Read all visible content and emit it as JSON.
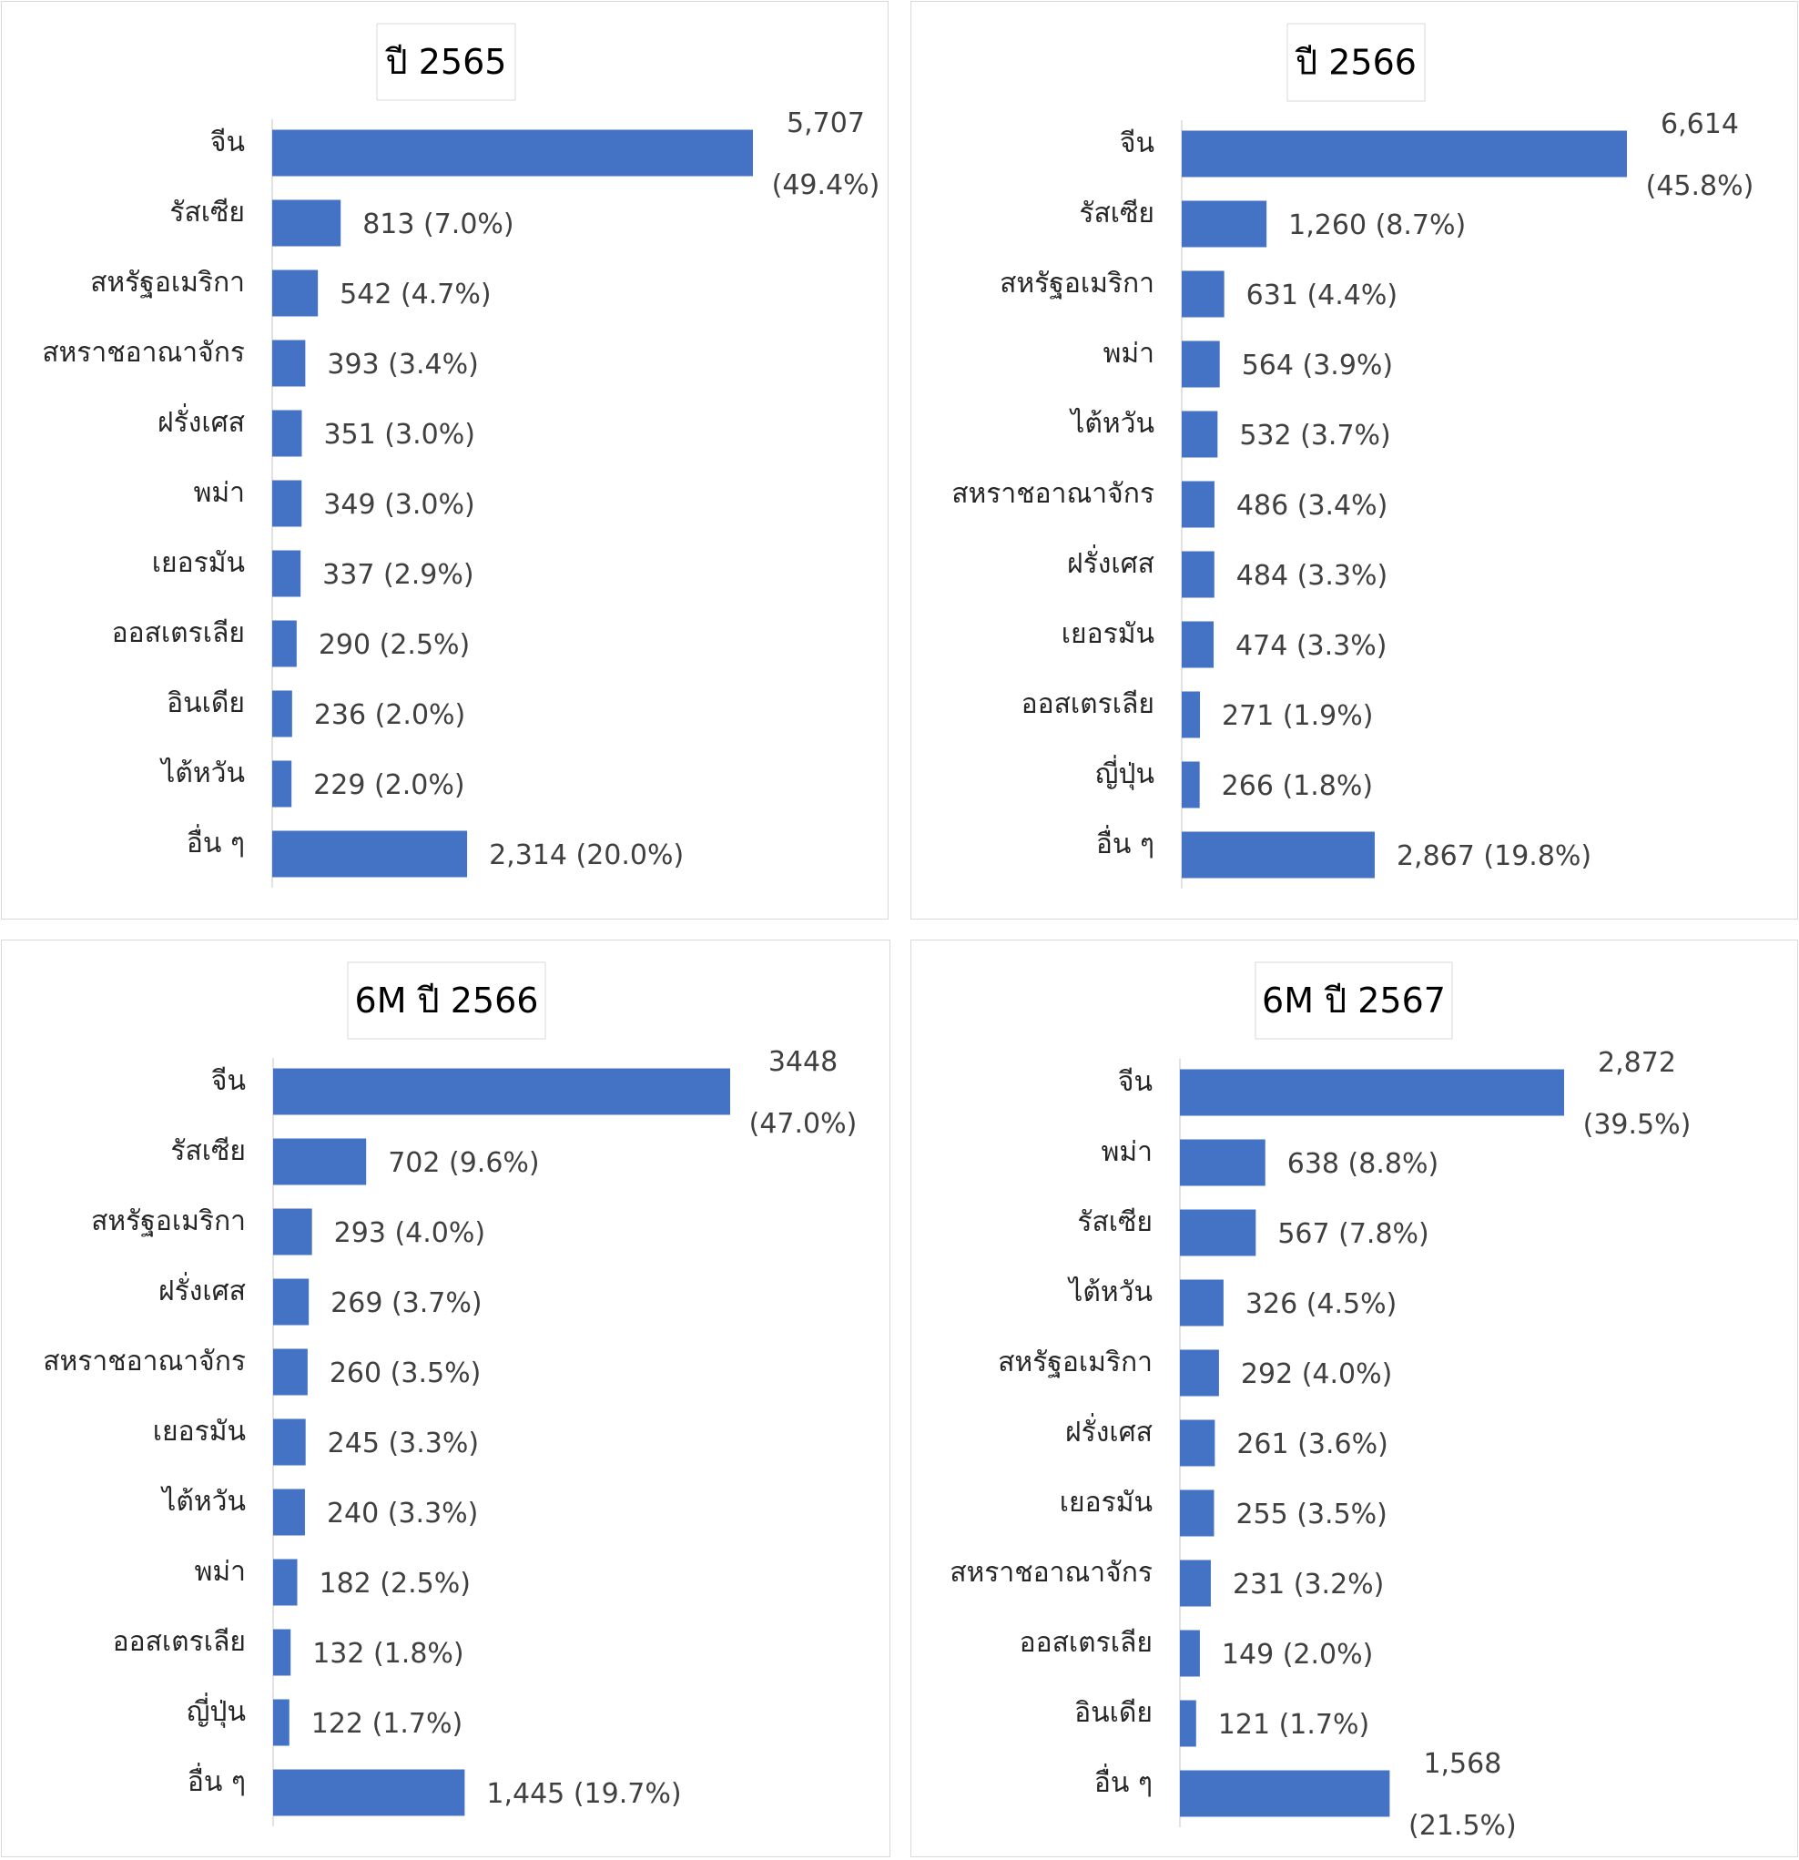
{
  "chart_data": [
    {
      "type": "bar",
      "orientation": "horizontal",
      "title": "ปี 2565",
      "categories": [
        "จีน",
        "รัสเซีย",
        "สหรัฐอเมริกา",
        "สหราชอาณาจักร",
        "ฝรั่งเศส",
        "พม่า",
        "เยอรมัน",
        "ออสเตรเลีย",
        "อินเดีย",
        "ไต้หวัน",
        "อื่น ๆ"
      ],
      "values": [
        5707,
        813,
        542,
        393,
        351,
        349,
        337,
        290,
        236,
        229,
        2314
      ],
      "value_labels": [
        "5,707",
        "813",
        "542",
        "393",
        "351",
        "349",
        "337",
        "290",
        "236",
        "229",
        "2,314"
      ],
      "percent_labels": [
        "(49.4%)",
        "(7.0%)",
        "(4.7%)",
        "(3.4%)",
        "(3.0%)",
        "(3.0%)",
        "(2.9%)",
        "(2.5%)",
        "(2.0%)",
        "(2.0%)",
        "(20.0%)"
      ],
      "bar_color": "#4472c4",
      "grid": false,
      "legend": false
    },
    {
      "type": "bar",
      "orientation": "horizontal",
      "title": "ปี 2566",
      "categories": [
        "จีน",
        "รัสเซีย",
        "สหรัฐอเมริกา",
        "พม่า",
        "ไต้หวัน",
        "สหราชอาณาจักร",
        "ฝรั่งเศส",
        "เยอรมัน",
        "ออสเตรเลีย",
        "ญี่ปุ่น",
        "อื่น ๆ"
      ],
      "values": [
        6614,
        1260,
        631,
        564,
        532,
        486,
        484,
        474,
        271,
        266,
        2867
      ],
      "value_labels": [
        "6,614",
        "1,260",
        "631",
        "564",
        "532",
        "486",
        "484",
        "474",
        "271",
        "266",
        "2,867"
      ],
      "percent_labels": [
        "(45.8%)",
        "(8.7%)",
        "(4.4%)",
        "(3.9%)",
        "(3.7%)",
        "(3.4%)",
        "(3.3%)",
        "(3.3%)",
        "(1.9%)",
        "(1.8%)",
        "(19.8%)"
      ],
      "bar_color": "#4472c4",
      "grid": false,
      "legend": false
    },
    {
      "type": "bar",
      "orientation": "horizontal",
      "title": "6M ปี 2566",
      "categories": [
        "จีน",
        "รัสเซีย",
        "สหรัฐอเมริกา",
        "ฝรั่งเศส",
        "สหราชอาณาจักร",
        "เยอรมัน",
        "ไต้หวัน",
        "พม่า",
        "ออสเตรเลีย",
        "ญี่ปุ่น",
        "อื่น ๆ"
      ],
      "values": [
        3448,
        702,
        293,
        269,
        260,
        245,
        240,
        182,
        132,
        122,
        1445
      ],
      "value_labels": [
        "3448",
        "702",
        "293",
        "269",
        "260",
        "245",
        "240",
        "182",
        "132",
        "122",
        "1,445"
      ],
      "percent_labels": [
        "(47.0%)",
        "(9.6%)",
        "(4.0%)",
        "(3.7%)",
        "(3.5%)",
        "(3.3%)",
        "(3.3%)",
        "(2.5%)",
        "(1.8%)",
        "(1.7%)",
        "(19.7%)"
      ],
      "bar_color": "#4472c4",
      "grid": false,
      "legend": false
    },
    {
      "type": "bar",
      "orientation": "horizontal",
      "title": "6M ปี 2567",
      "categories": [
        "จีน",
        "พม่า",
        "รัสเซีย",
        "ไต้หวัน",
        "สหรัฐอเมริกา",
        "ฝรั่งเศส",
        "เยอรมัน",
        "สหราชอาณาจักร",
        "ออสเตรเลีย",
        "อินเดีย",
        "อื่น ๆ"
      ],
      "values": [
        2872,
        638,
        567,
        326,
        292,
        261,
        255,
        231,
        149,
        121,
        1568
      ],
      "value_labels": [
        "2,872",
        "638",
        "567",
        "326",
        "292",
        "261",
        "255",
        "231",
        "149",
        "121",
        "1,568"
      ],
      "percent_labels": [
        "(39.5%)",
        "(8.8%)",
        "(7.8%)",
        "(4.5%)",
        "(4.0%)",
        "(3.6%)",
        "(3.5%)",
        "(3.2%)",
        "(2.0%)",
        "(1.7%)",
        "(21.5%)"
      ],
      "bar_color": "#4472c4",
      "grid": false,
      "legend": false
    }
  ]
}
